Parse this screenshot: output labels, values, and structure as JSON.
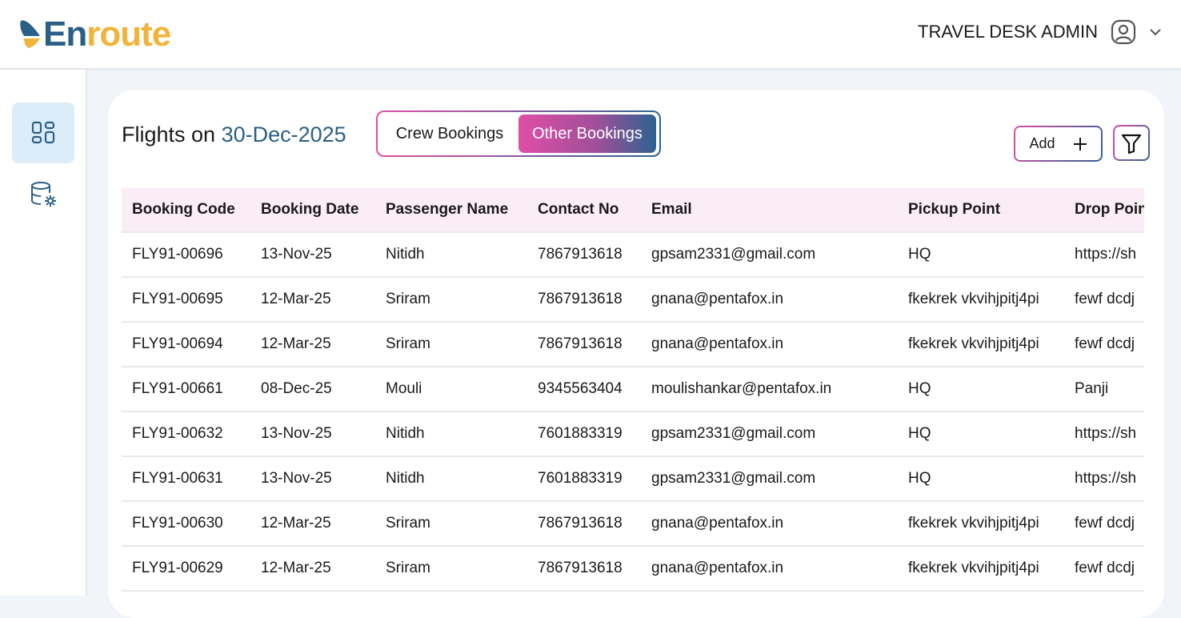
{
  "header": {
    "logo_part1": "En",
    "logo_part2": "route",
    "user_name": "TRAVEL DESK ADMIN"
  },
  "sidebar": {
    "items": [
      {
        "icon": "dashboard-icon",
        "active": true
      },
      {
        "icon": "database-settings-icon",
        "active": false
      }
    ]
  },
  "main": {
    "title_prefix": "Flights on",
    "title_date": "30-Dec-2025",
    "tabs": [
      {
        "label": "Crew Bookings",
        "active": false
      },
      {
        "label": "Other Bookings",
        "active": true
      }
    ],
    "add_label": "Add",
    "table": {
      "columns": [
        "Booking Code",
        "Booking Date",
        "Passenger Name",
        "Contact No",
        "Email",
        "Pickup Point",
        "Drop Point"
      ],
      "rows": [
        [
          "FLY91-00696",
          "13-Nov-25",
          "Nitidh",
          "7867913618",
          "gpsam2331@gmail.com",
          "HQ",
          "https://sh"
        ],
        [
          "FLY91-00695",
          "12-Mar-25",
          "Sriram",
          "7867913618",
          "gnana@pentafox.in",
          "fkekrek vkvihjpitj4pi",
          "fewf dcdj"
        ],
        [
          "FLY91-00694",
          "12-Mar-25",
          "Sriram",
          "7867913618",
          "gnana@pentafox.in",
          "fkekrek vkvihjpitj4pi",
          "fewf dcdj"
        ],
        [
          "FLY91-00661",
          "08-Dec-25",
          "Mouli",
          "9345563404",
          "moulishankar@pentafox.in",
          "HQ",
          "Panji"
        ],
        [
          "FLY91-00632",
          "13-Nov-25",
          "Nitidh",
          "7601883319",
          "gpsam2331@gmail.com",
          "HQ",
          "https://sh"
        ],
        [
          "FLY91-00631",
          "13-Nov-25",
          "Nitidh",
          "7601883319",
          "gpsam2331@gmail.com",
          "HQ",
          "https://sh"
        ],
        [
          "FLY91-00630",
          "12-Mar-25",
          "Sriram",
          "7867913618",
          "gnana@pentafox.in",
          "fkekrek vkvihjpitj4pi",
          "fewf dcdj"
        ],
        [
          "FLY91-00629",
          "12-Mar-25",
          "Sriram",
          "7867913618",
          "gnana@pentafox.in",
          "fkekrek vkvihjpitj4pi",
          "fewf dcdj"
        ]
      ]
    }
  },
  "colors": {
    "brand_blue": "#2a5f86",
    "brand_yellow": "#f0b43a",
    "accent_pink": "#e04ea7",
    "header_row_bg": "#fbedf6"
  }
}
